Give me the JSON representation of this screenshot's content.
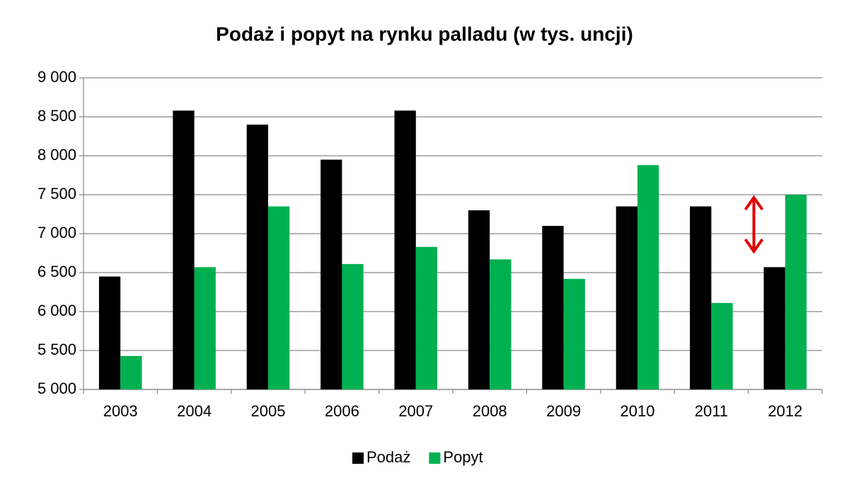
{
  "chart_data": {
    "type": "bar",
    "title": "Podaż i popyt na rynku palladu (w tys. uncji)",
    "categories": [
      "2003",
      "2004",
      "2005",
      "2006",
      "2007",
      "2008",
      "2009",
      "2010",
      "2011",
      "2012"
    ],
    "series": [
      {
        "name": "Podaż",
        "color": "#000000",
        "values": [
          6450,
          8580,
          8400,
          7950,
          8580,
          7300,
          7100,
          7350,
          7350,
          6570
        ]
      },
      {
        "name": "Popyt",
        "color": "#00b050",
        "values": [
          5430,
          6570,
          7350,
          6610,
          6830,
          6670,
          6420,
          7880,
          6110,
          7500
        ]
      }
    ],
    "ylim": [
      5000,
      9000
    ],
    "yticks": [
      {
        "value": 5000,
        "label": "5 000"
      },
      {
        "value": 5500,
        "label": "5 500"
      },
      {
        "value": 6000,
        "label": "6 000"
      },
      {
        "value": 6500,
        "label": "6 500"
      },
      {
        "value": 7000,
        "label": "7 000"
      },
      {
        "value": 7500,
        "label": "7 500"
      },
      {
        "value": 8000,
        "label": "8 000"
      },
      {
        "value": 8500,
        "label": "8 500"
      },
      {
        "value": 9000,
        "label": "9 000"
      }
    ],
    "grid": true,
    "legend": "bottom"
  }
}
